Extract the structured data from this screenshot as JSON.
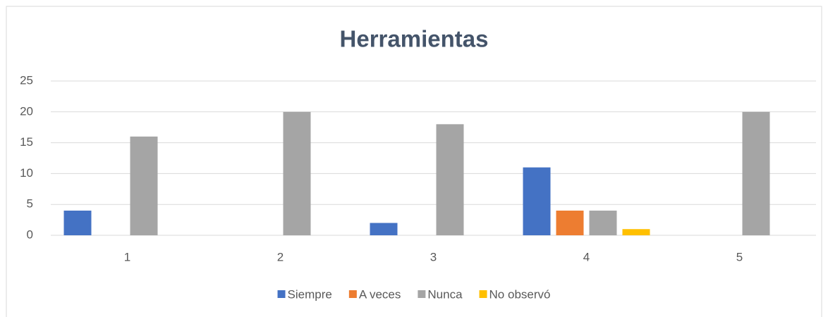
{
  "chart_data": {
    "type": "bar",
    "title": "Herramientas",
    "categories": [
      "1",
      "2",
      "3",
      "4",
      "5"
    ],
    "series": [
      {
        "name": "Siempre",
        "color": "#4472c4",
        "values": [
          4,
          0,
          2,
          11,
          0
        ]
      },
      {
        "name": "A veces",
        "color": "#ed7d31",
        "values": [
          0,
          0,
          0,
          4,
          0
        ]
      },
      {
        "name": "Nunca",
        "color": "#a5a5a5",
        "values": [
          16,
          20,
          18,
          4,
          20
        ]
      },
      {
        "name": "No observó",
        "color": "#ffc000",
        "values": [
          0,
          0,
          0,
          1,
          0
        ]
      }
    ],
    "ylim": [
      0,
      25
    ],
    "yticks": [
      0,
      5,
      10,
      15,
      20,
      25
    ],
    "grid": true,
    "legend": "bottom"
  }
}
